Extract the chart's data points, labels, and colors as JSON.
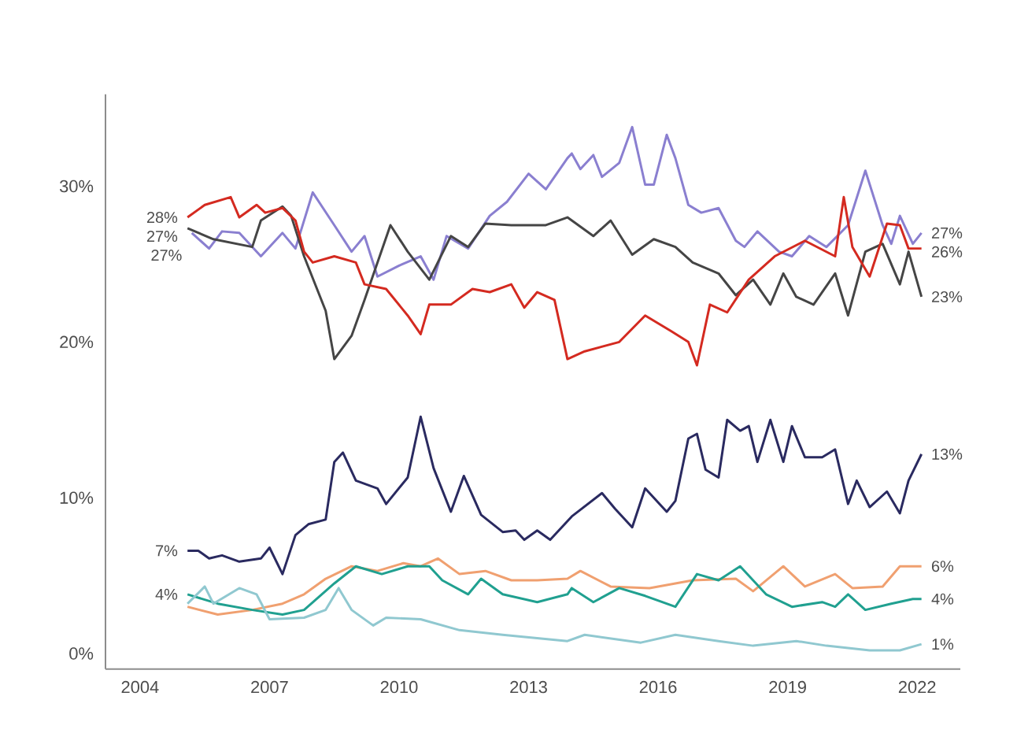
{
  "chart_data": {
    "type": "line",
    "marker": "none",
    "grid": false,
    "xlim": [
      2003.2,
      2023.0
    ],
    "ylim": [
      -1.0,
      35.9
    ],
    "xticks": [
      2004,
      2007,
      2010,
      2013,
      2016,
      2019,
      2022
    ],
    "yticks": [
      {
        "value": 0,
        "label": "0%"
      },
      {
        "value": 10,
        "label": "10%"
      },
      {
        "value": 20,
        "label": "20%"
      },
      {
        "value": 30,
        "label": "30%"
      }
    ],
    "series": [
      {
        "color": "#8a7fd0",
        "x": [
          2005.2,
          2005.6,
          2005.9,
          2006.3,
          2006.8,
          2007.3,
          2007.6,
          2008.0,
          2008.5,
          2008.9,
          2009.2,
          2009.5,
          2010.0,
          2010.5,
          2010.8,
          2011.1,
          2011.6,
          2012.1,
          2012.5,
          2013.0,
          2013.4,
          2013.9,
          2014.0,
          2014.2,
          2014.5,
          2014.7,
          2015.1,
          2015.4,
          2015.7,
          2015.9,
          2016.2,
          2016.4,
          2016.7,
          2017.0,
          2017.4,
          2017.8,
          2018.0,
          2018.3,
          2018.8,
          2019.1,
          2019.5,
          2019.9,
          2020.4,
          2020.8,
          2021.2,
          2021.4,
          2021.6,
          2021.9,
          2022.1
        ],
        "values": [
          27.0,
          26.0,
          27.1,
          27.0,
          25.5,
          27.0,
          26.0,
          29.6,
          27.5,
          25.8,
          26.8,
          24.2,
          24.9,
          25.5,
          24.0,
          26.8,
          26.0,
          28.1,
          29.0,
          30.8,
          29.8,
          31.8,
          32.1,
          31.1,
          32.0,
          30.6,
          31.5,
          33.8,
          30.1,
          30.1,
          33.3,
          31.8,
          28.8,
          28.3,
          28.6,
          26.5,
          26.1,
          27.1,
          25.8,
          25.5,
          26.8,
          26.1,
          27.5,
          31.0,
          27.5,
          26.3,
          28.1,
          26.3,
          27.0
        ]
      },
      {
        "color": "#454545",
        "x": [
          2005.1,
          2005.7,
          2006.6,
          2006.8,
          2007.3,
          2007.5,
          2007.8,
          2008.3,
          2008.5,
          2008.9,
          2009.2,
          2009.5,
          2009.8,
          2010.2,
          2010.7,
          2011.2,
          2011.6,
          2012.0,
          2012.6,
          2013.4,
          2013.9,
          2014.5,
          2014.9,
          2015.4,
          2015.9,
          2016.4,
          2016.8,
          2017.4,
          2017.8,
          2018.2,
          2018.6,
          2018.9,
          2019.2,
          2019.6,
          2020.1,
          2020.4,
          2020.8,
          2021.2,
          2021.6,
          2021.8,
          2022.1
        ],
        "values": [
          27.3,
          26.6,
          26.1,
          27.8,
          28.7,
          28.1,
          25.5,
          22.0,
          18.9,
          20.4,
          22.7,
          25.1,
          27.5,
          25.8,
          24.0,
          26.8,
          26.1,
          27.6,
          27.5,
          27.5,
          28.0,
          26.8,
          27.8,
          25.6,
          26.6,
          26.1,
          25.1,
          24.4,
          23.0,
          24.0,
          22.4,
          24.4,
          22.9,
          22.4,
          24.4,
          21.7,
          25.8,
          26.3,
          23.7,
          25.8,
          22.9
        ]
      },
      {
        "color": "#d42a20",
        "x": [
          2005.1,
          2005.5,
          2006.1,
          2006.3,
          2006.7,
          2006.9,
          2007.3,
          2007.6,
          2007.8,
          2008.0,
          2008.5,
          2009.0,
          2009.2,
          2009.7,
          2010.2,
          2010.5,
          2010.7,
          2011.2,
          2011.7,
          2012.1,
          2012.6,
          2012.9,
          2013.2,
          2013.6,
          2013.9,
          2014.3,
          2015.1,
          2015.7,
          2016.3,
          2016.7,
          2016.9,
          2017.2,
          2017.6,
          2018.1,
          2018.7,
          2019.4,
          2020.1,
          2020.3,
          2020.5,
          2020.9,
          2021.3,
          2021.6,
          2021.8,
          2022.1
        ],
        "values": [
          28.0,
          28.8,
          29.3,
          28.0,
          28.8,
          28.3,
          28.6,
          27.8,
          25.8,
          25.1,
          25.5,
          25.1,
          23.7,
          23.4,
          21.7,
          20.5,
          22.4,
          22.4,
          23.4,
          23.2,
          23.7,
          22.2,
          23.2,
          22.7,
          18.9,
          19.4,
          20.0,
          21.7,
          20.7,
          20.0,
          18.5,
          22.4,
          21.9,
          24.0,
          25.5,
          26.5,
          25.5,
          29.3,
          26.1,
          24.2,
          27.6,
          27.5,
          26.0,
          26.0
        ]
      },
      {
        "color": "#2a2a60",
        "x": [
          2005.1,
          2005.35,
          2005.6,
          2005.9,
          2006.3,
          2006.8,
          2007.0,
          2007.3,
          2007.6,
          2007.9,
          2008.3,
          2008.5,
          2008.7,
          2009.0,
          2009.5,
          2009.7,
          2010.2,
          2010.5,
          2010.8,
          2011.2,
          2011.5,
          2011.9,
          2012.4,
          2012.7,
          2012.9,
          2013.2,
          2013.5,
          2014.0,
          2014.7,
          2015.0,
          2015.4,
          2015.7,
          2016.2,
          2016.4,
          2016.7,
          2016.9,
          2017.1,
          2017.4,
          2017.6,
          2017.9,
          2018.1,
          2018.3,
          2018.6,
          2018.9,
          2019.1,
          2019.4,
          2019.8,
          2020.1,
          2020.4,
          2020.6,
          2020.9,
          2021.3,
          2021.6,
          2021.8,
          2022.1
        ],
        "values": [
          6.6,
          6.6,
          6.1,
          6.3,
          5.9,
          6.1,
          6.8,
          5.1,
          7.6,
          8.3,
          8.6,
          12.3,
          12.9,
          11.1,
          10.6,
          9.6,
          11.3,
          15.2,
          11.9,
          9.1,
          11.4,
          8.9,
          7.8,
          7.9,
          7.3,
          7.9,
          7.3,
          8.8,
          10.3,
          9.3,
          8.1,
          10.6,
          9.1,
          9.8,
          13.8,
          14.1,
          11.8,
          11.3,
          15.0,
          14.3,
          14.6,
          12.3,
          15.0,
          12.3,
          14.6,
          12.6,
          12.6,
          13.1,
          9.6,
          11.1,
          9.4,
          10.4,
          9.0,
          11.1,
          12.8
        ]
      },
      {
        "color": "#f0a070",
        "x": [
          2005.1,
          2005.8,
          2006.6,
          2007.3,
          2007.8,
          2008.3,
          2008.9,
          2009.5,
          2010.1,
          2010.5,
          2010.9,
          2011.4,
          2012.0,
          2012.6,
          2013.2,
          2013.9,
          2014.2,
          2014.9,
          2015.8,
          2016.8,
          2017.8,
          2018.2,
          2018.9,
          2019.4,
          2020.1,
          2020.5,
          2021.2,
          2021.6,
          2022.1
        ],
        "values": [
          3.0,
          2.5,
          2.8,
          3.2,
          3.8,
          4.8,
          5.6,
          5.3,
          5.8,
          5.6,
          6.1,
          5.1,
          5.3,
          4.7,
          4.7,
          4.8,
          5.3,
          4.3,
          4.2,
          4.7,
          4.8,
          4.0,
          5.6,
          4.3,
          5.1,
          4.2,
          4.3,
          5.6,
          5.6
        ]
      },
      {
        "color": "#20a090",
        "x": [
          2005.1,
          2005.8,
          2006.6,
          2007.3,
          2007.8,
          2008.5,
          2009.0,
          2009.6,
          2010.2,
          2010.7,
          2011.0,
          2011.6,
          2011.9,
          2012.4,
          2013.2,
          2013.9,
          2014.0,
          2014.5,
          2015.1,
          2015.7,
          2016.4,
          2016.9,
          2017.4,
          2017.9,
          2018.5,
          2019.1,
          2019.8,
          2020.1,
          2020.4,
          2020.8,
          2021.4,
          2021.9,
          2022.1
        ],
        "values": [
          3.8,
          3.2,
          2.8,
          2.5,
          2.8,
          4.5,
          5.6,
          5.1,
          5.6,
          5.6,
          4.7,
          3.8,
          4.8,
          3.8,
          3.3,
          3.8,
          4.2,
          3.3,
          4.2,
          3.7,
          3.0,
          5.1,
          4.7,
          5.6,
          3.8,
          3.0,
          3.3,
          3.0,
          3.8,
          2.8,
          3.2,
          3.5,
          3.5
        ]
      },
      {
        "color": "#90c8d0",
        "x": [
          2005.1,
          2005.5,
          2005.7,
          2006.3,
          2006.7,
          2007.0,
          2007.8,
          2008.3,
          2008.6,
          2008.9,
          2009.4,
          2009.7,
          2010.5,
          2011.4,
          2012.4,
          2013.9,
          2014.3,
          2015.6,
          2016.4,
          2017.4,
          2018.2,
          2019.2,
          2019.9,
          2020.9,
          2021.6,
          2022.1
        ],
        "values": [
          3.2,
          4.3,
          3.2,
          4.2,
          3.8,
          2.2,
          2.3,
          2.8,
          4.2,
          2.8,
          1.8,
          2.3,
          2.2,
          1.5,
          1.2,
          0.8,
          1.2,
          0.7,
          1.2,
          0.8,
          0.5,
          0.8,
          0.5,
          0.2,
          0.2,
          0.6
        ]
      }
    ],
    "annotations": [
      {
        "text": "28%",
        "x": 2005.1,
        "y": 28.0
      },
      {
        "text": "27%",
        "x": 2005.1,
        "y": 27.3
      },
      {
        "text": "27%",
        "x": 2005.2,
        "y": 27.0
      },
      {
        "text": "7%",
        "x": 2005.1,
        "y": 6.6
      },
      {
        "text": "4%",
        "x": 2005.1,
        "y": 3.8
      },
      {
        "text": "27%",
        "x": 2022.1,
        "y": 27.0
      },
      {
        "text": "26%",
        "x": 2022.1,
        "y": 26.0
      },
      {
        "text": "23%",
        "x": 2022.1,
        "y": 22.9
      },
      {
        "text": "13%",
        "x": 2022.1,
        "y": 12.8
      },
      {
        "text": "6%",
        "x": 2022.1,
        "y": 5.6
      },
      {
        "text": "4%",
        "x": 2022.1,
        "y": 3.5
      },
      {
        "text": "1%",
        "x": 2022.1,
        "y": 0.6
      }
    ]
  }
}
